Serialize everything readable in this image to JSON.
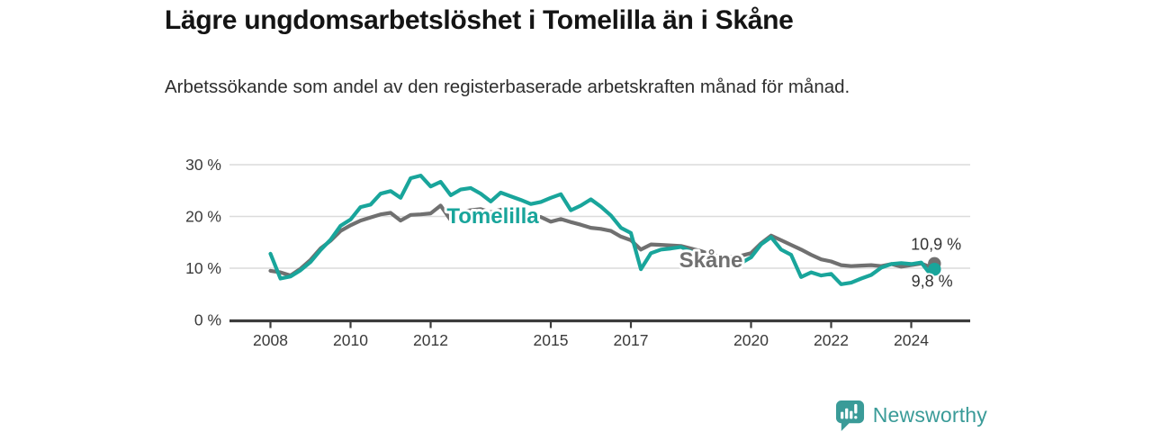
{
  "header": {
    "title": "Lägre ungdomsarbetslöshet i Tomelilla än i Skåne",
    "subtitle": "Arbetssökande som andel av den registerbaserade arbetskraften månad för månad."
  },
  "chart_data": {
    "type": "line",
    "xlabel": "",
    "ylabel": "",
    "unit": "%",
    "grid": true,
    "ylim": [
      0,
      32
    ],
    "x": [
      2008,
      2008.25,
      2008.5,
      2008.75,
      2009,
      2009.25,
      2009.5,
      2009.75,
      2010,
      2010.25,
      2010.5,
      2010.75,
      2011,
      2011.25,
      2011.5,
      2011.75,
      2012,
      2012.25,
      2012.5,
      2012.75,
      2013,
      2013.25,
      2013.5,
      2013.75,
      2014,
      2014.25,
      2014.5,
      2014.75,
      2015,
      2015.25,
      2015.5,
      2015.75,
      2016,
      2016.25,
      2016.5,
      2016.75,
      2017,
      2017.25,
      2017.5,
      2017.75,
      2018,
      2018.25,
      2018.5,
      2018.75,
      2019,
      2019.25,
      2019.5,
      2019.75,
      2020,
      2020.25,
      2020.5,
      2020.75,
      2021,
      2021.25,
      2021.5,
      2021.75,
      2022,
      2022.25,
      2022.5,
      2022.75,
      2023,
      2023.25,
      2023.5,
      2023.75,
      2024,
      2024.25,
      2024.42,
      2024.58
    ],
    "series": [
      {
        "name": "Skåne",
        "color": "#707070",
        "end_label": "10,9 %",
        "values": [
          9.5,
          9.2,
          8.6,
          9.9,
          11.6,
          13.8,
          15.3,
          17.2,
          18.3,
          19.2,
          19.8,
          20.4,
          20.7,
          19.2,
          20.3,
          20.4,
          20.6,
          22.1,
          19.3,
          20.9,
          21.2,
          21.4,
          20.8,
          21.3,
          20.6,
          20.2,
          19.7,
          19.9,
          19.0,
          19.5,
          18.9,
          18.4,
          17.8,
          17.6,
          17.2,
          16.1,
          15.4,
          13.6,
          14.6,
          14.5,
          14.4,
          14.3,
          13.8,
          13.3,
          12.6,
          12.3,
          12.2,
          12.4,
          12.9,
          14.8,
          16.3,
          15.4,
          14.5,
          13.6,
          12.6,
          11.7,
          11.3,
          10.6,
          10.4,
          10.5,
          10.6,
          10.4,
          10.8,
          10.3,
          10.6,
          10.9,
          10.4,
          10.9
        ]
      },
      {
        "name": "Tomelilla",
        "color": "#19A59B",
        "end_label": "9,8 %",
        "values": [
          12.8,
          8.0,
          8.4,
          9.6,
          11.2,
          13.5,
          15.5,
          18.2,
          19.4,
          21.8,
          22.3,
          24.4,
          24.9,
          23.6,
          27.4,
          27.9,
          25.8,
          26.7,
          24.1,
          25.2,
          25.5,
          24.4,
          22.9,
          24.6,
          23.9,
          23.2,
          22.4,
          22.8,
          23.6,
          24.3,
          21.2,
          22.1,
          23.3,
          21.9,
          20.2,
          17.8,
          16.8,
          9.8,
          12.9,
          13.6,
          13.8,
          14.1,
          13.2,
          12.0,
          10.2,
          10.6,
          11.3,
          11.0,
          12.1,
          14.6,
          16.0,
          13.6,
          12.6,
          8.3,
          9.2,
          8.6,
          8.9,
          6.9,
          7.2,
          8.0,
          8.7,
          10.1,
          10.8,
          11.0,
          10.8,
          11.1,
          9.4,
          9.8
        ]
      }
    ],
    "y_ticks": [
      {
        "value": 0,
        "label": "0 %"
      },
      {
        "value": 10,
        "label": "10 %"
      },
      {
        "value": 20,
        "label": "20 %"
      },
      {
        "value": 30,
        "label": "30 %"
      }
    ],
    "x_ticks": [
      {
        "value": 2008,
        "label": "2008"
      },
      {
        "value": 2010,
        "label": "2010"
      },
      {
        "value": 2012,
        "label": "2012"
      },
      {
        "value": 2015,
        "label": "2015"
      },
      {
        "value": 2017,
        "label": "2017"
      },
      {
        "value": 2020,
        "label": "2020"
      },
      {
        "value": 2022,
        "label": "2022"
      },
      {
        "value": 2024,
        "label": "2024"
      }
    ],
    "annotations": [
      {
        "text": "Tomelilla",
        "x": 2013.55,
        "y": 20.1,
        "color": "#19A59B",
        "bold": true,
        "size": 24
      },
      {
        "text": "Skåne",
        "x": 2019.0,
        "y": 11.6,
        "color": "#707070",
        "bold": true,
        "size": 24
      },
      {
        "text": "10,9 %",
        "x": 2024.62,
        "y": 14.6,
        "color": "#333333",
        "bold": false,
        "size": 18
      },
      {
        "text": "9,8 %",
        "x": 2024.52,
        "y": 7.5,
        "color": "#333333",
        "bold": false,
        "size": 18
      }
    ],
    "legend_position": "inline-labels",
    "colors": {
      "grid": "#DCDCDC",
      "axis": "#3C3C3C",
      "tick_label": "#3A3A3A",
      "background": "#FFFFFF"
    }
  },
  "footer": {
    "brand": "Newsworthy",
    "brand_color": "#3A9B98"
  }
}
